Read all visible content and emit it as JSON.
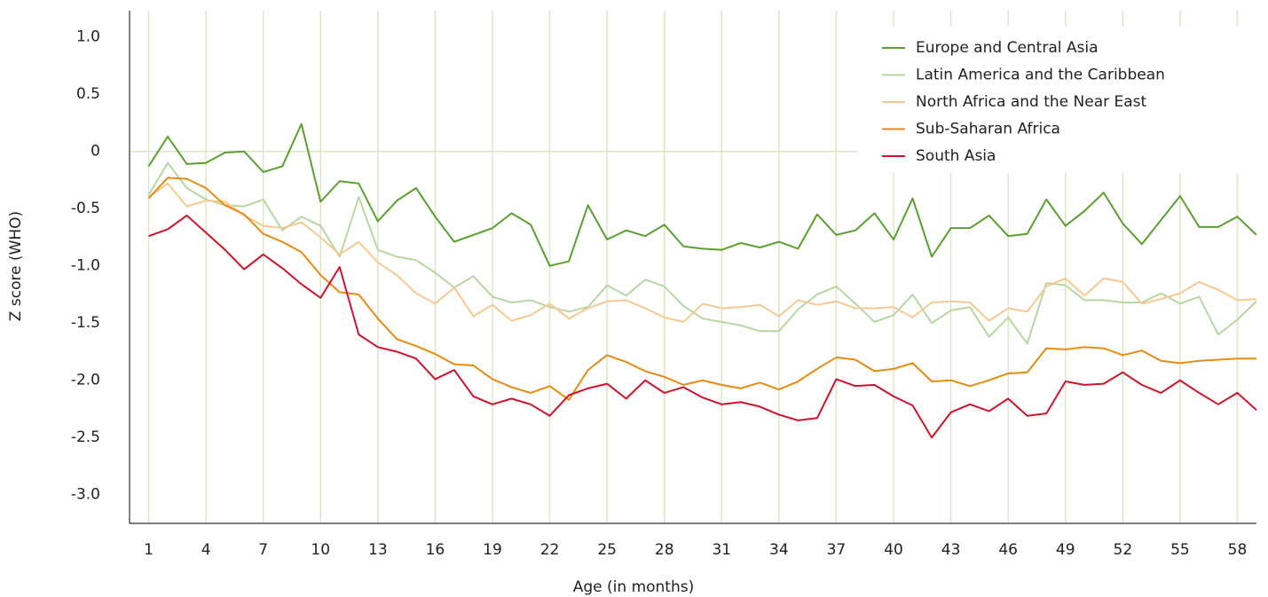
{
  "chart_data": {
    "type": "line",
    "x_label": "Age (in months)",
    "y_label": "Z score (WHO)",
    "x": [
      1,
      2,
      3,
      4,
      5,
      6,
      7,
      8,
      9,
      10,
      11,
      12,
      13,
      14,
      15,
      16,
      17,
      18,
      19,
      20,
      21,
      22,
      23,
      24,
      25,
      26,
      27,
      28,
      29,
      30,
      31,
      32,
      33,
      34,
      35,
      36,
      37,
      38,
      39,
      40,
      41,
      42,
      43,
      44,
      45,
      46,
      47,
      48,
      49,
      50,
      51,
      52,
      53,
      54,
      55,
      56,
      57,
      58,
      59
    ],
    "xlim": [
      0,
      59
    ],
    "xticks": [
      1,
      4,
      7,
      10,
      13,
      16,
      19,
      22,
      25,
      28,
      31,
      34,
      37,
      40,
      43,
      46,
      49,
      52,
      55,
      58
    ],
    "ylim": [
      -3.25,
      1.23
    ],
    "yticks": [
      {
        "value": 1,
        "label": "1.0"
      },
      0.5,
      0,
      -0.5,
      {
        "value": -1,
        "label": "-1.0"
      },
      -1.5,
      {
        "value": -2,
        "label": "-2.0"
      },
      -2.5,
      {
        "value": -3,
        "label": "-3.0"
      }
    ],
    "grid": "x",
    "legend": "upper right",
    "series": [
      {
        "name": "Europe and Central Asia",
        "color": "#5aa02c",
        "values": [
          -0.13,
          0.13,
          -0.11,
          -0.1,
          -0.01,
          0,
          -0.18,
          -0.13,
          0.24,
          -0.44,
          -0.26,
          -0.28,
          -0.61,
          -0.43,
          -0.32,
          -0.57,
          -0.79,
          -0.73,
          -0.67,
          -0.54,
          -0.64,
          -1.0,
          -0.96,
          -0.47,
          -0.77,
          -0.69,
          -0.74,
          -0.64,
          -0.83,
          -0.85,
          -0.86,
          -0.8,
          -0.84,
          -0.79,
          -0.85,
          -0.55,
          -0.73,
          -0.69,
          -0.54,
          -0.77,
          -0.41,
          -0.92,
          -0.67,
          -0.67,
          -0.56,
          -0.74,
          -0.72,
          -0.42,
          -0.65,
          -0.52,
          -0.36,
          -0.63,
          -0.81,
          -0.6,
          -0.39,
          -0.66,
          -0.66,
          -0.57,
          -0.73
        ]
      },
      {
        "name": "Latin America and the Caribbean",
        "color": "#b7d7a2",
        "values": [
          -0.38,
          -0.1,
          -0.32,
          -0.42,
          -0.47,
          -0.48,
          -0.42,
          -0.69,
          -0.57,
          -0.65,
          -0.92,
          -0.4,
          -0.86,
          -0.92,
          -0.95,
          -1.06,
          -1.19,
          -1.09,
          -1.27,
          -1.32,
          -1.3,
          -1.36,
          -1.4,
          -1.36,
          -1.17,
          -1.26,
          -1.12,
          -1.18,
          -1.35,
          -1.46,
          -1.49,
          -1.52,
          -1.57,
          -1.57,
          -1.38,
          -1.25,
          -1.18,
          -1.33,
          -1.49,
          -1.43,
          -1.25,
          -1.5,
          -1.39,
          -1.36,
          -1.62,
          -1.45,
          -1.68,
          -1.15,
          -1.17,
          -1.3,
          -1.3,
          -1.32,
          -1.32,
          -1.24,
          -1.33,
          -1.27,
          -1.6,
          -1.47,
          -1.31
        ]
      },
      {
        "name": "North Africa and the Near East",
        "color": "#f7c990",
        "values": [
          -0.4,
          -0.28,
          -0.48,
          -0.43,
          -0.44,
          -0.56,
          -0.65,
          -0.67,
          -0.62,
          -0.75,
          -0.9,
          -0.79,
          -0.97,
          -1.08,
          -1.24,
          -1.33,
          -1.19,
          -1.44,
          -1.34,
          -1.48,
          -1.43,
          -1.33,
          -1.46,
          -1.37,
          -1.31,
          -1.3,
          -1.37,
          -1.45,
          -1.49,
          -1.33,
          -1.37,
          -1.36,
          -1.34,
          -1.44,
          -1.3,
          -1.34,
          -1.31,
          -1.37,
          -1.37,
          -1.36,
          -1.45,
          -1.32,
          -1.31,
          -1.32,
          -1.48,
          -1.37,
          -1.4,
          -1.18,
          -1.11,
          -1.26,
          -1.11,
          -1.14,
          -1.33,
          -1.29,
          -1.24,
          -1.14,
          -1.21,
          -1.3,
          -1.29
        ]
      },
      {
        "name": "Sub-Saharan Africa",
        "color": "#e88b10",
        "values": [
          -0.41,
          -0.23,
          -0.24,
          -0.32,
          -0.47,
          -0.55,
          -0.72,
          -0.79,
          -0.88,
          -1.08,
          -1.23,
          -1.25,
          -1.46,
          -1.64,
          -1.7,
          -1.77,
          -1.86,
          -1.87,
          -1.99,
          -2.06,
          -2.11,
          -2.05,
          -2.17,
          -1.91,
          -1.78,
          -1.84,
          -1.92,
          -1.97,
          -2.04,
          -2.0,
          -2.04,
          -2.07,
          -2.02,
          -2.08,
          -2.01,
          -1.9,
          -1.8,
          -1.82,
          -1.92,
          -1.9,
          -1.85,
          -2.01,
          -2.0,
          -2.05,
          -2.0,
          -1.94,
          -1.93,
          -1.72,
          -1.73,
          -1.71,
          -1.72,
          -1.78,
          -1.74,
          -1.83,
          -1.85,
          -1.83,
          -1.82,
          -1.81,
          -1.81
        ]
      },
      {
        "name": "South Asia",
        "color": "#d0122c",
        "values": [
          -0.74,
          -0.68,
          -0.56,
          -0.71,
          -0.86,
          -1.03,
          -0.9,
          -1.02,
          -1.16,
          -1.28,
          -1.01,
          -1.6,
          -1.71,
          -1.75,
          -1.81,
          -1.99,
          -1.91,
          -2.14,
          -2.21,
          -2.16,
          -2.21,
          -2.31,
          -2.13,
          -2.07,
          -2.03,
          -2.16,
          -2.0,
          -2.11,
          -2.06,
          -2.15,
          -2.21,
          -2.19,
          -2.23,
          -2.3,
          -2.35,
          -2.33,
          -1.99,
          -2.05,
          -2.04,
          -2.14,
          -2.22,
          -2.5,
          -2.28,
          -2.21,
          -2.27,
          -2.16,
          -2.31,
          -2.29,
          -2.01,
          -2.04,
          -2.03,
          -1.93,
          -2.04,
          -2.11,
          -2.0,
          -2.11,
          -2.21,
          -2.11,
          -2.26
        ]
      }
    ]
  }
}
